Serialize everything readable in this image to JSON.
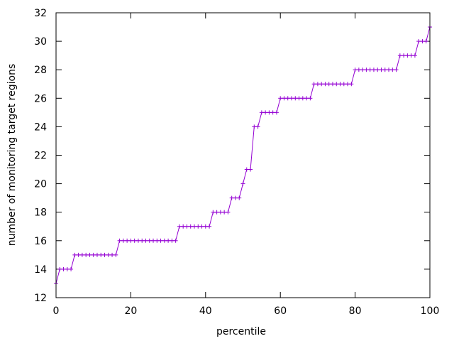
{
  "chart_data": {
    "type": "line",
    "title": "",
    "xlabel": "percentile",
    "ylabel": "number of monitoring target regions",
    "xlim": [
      0,
      100
    ],
    "ylim": [
      12,
      32
    ],
    "xticks": [
      0,
      20,
      40,
      60,
      80,
      100
    ],
    "yticks": [
      12,
      14,
      16,
      18,
      20,
      22,
      24,
      26,
      28,
      30,
      32
    ],
    "grid": false,
    "legend": "none",
    "marker": "plus",
    "series_color": "#9400d3",
    "series": [
      {
        "x": [
          0,
          1,
          2,
          3,
          4,
          5,
          6,
          7,
          8,
          9,
          10,
          11,
          12,
          13,
          14,
          15,
          16,
          17,
          18,
          19,
          20,
          21,
          22,
          23,
          24,
          25,
          26,
          27,
          28,
          29,
          30,
          31,
          32,
          33,
          34,
          35,
          36,
          37,
          38,
          39,
          40,
          41,
          42,
          43,
          44,
          45,
          46,
          47,
          48,
          49,
          50,
          51,
          52,
          53,
          54,
          55,
          56,
          57,
          58,
          59,
          60,
          61,
          62,
          63,
          64,
          65,
          66,
          67,
          68,
          69,
          70,
          71,
          72,
          73,
          74,
          75,
          76,
          77,
          78,
          79,
          80,
          81,
          82,
          83,
          84,
          85,
          86,
          87,
          88,
          89,
          90,
          91,
          92,
          93,
          94,
          95,
          96,
          97,
          98,
          99,
          100
        ],
        "y": [
          13,
          14,
          14,
          14,
          14,
          15,
          15,
          15,
          15,
          15,
          15,
          15,
          15,
          15,
          15,
          15,
          15,
          16,
          16,
          16,
          16,
          16,
          16,
          16,
          16,
          16,
          16,
          16,
          16,
          16,
          16,
          16,
          16,
          17,
          17,
          17,
          17,
          17,
          17,
          17,
          17,
          17,
          18,
          18,
          18,
          18,
          18,
          19,
          19,
          19,
          20,
          21,
          21,
          24,
          24,
          25,
          25,
          25,
          25,
          25,
          26,
          26,
          26,
          26,
          26,
          26,
          26,
          26,
          26,
          27,
          27,
          27,
          27,
          27,
          27,
          27,
          27,
          27,
          27,
          27,
          28,
          28,
          28,
          28,
          28,
          28,
          28,
          28,
          28,
          28,
          28,
          28,
          29,
          29,
          29,
          29,
          29,
          30,
          30,
          30,
          31
        ]
      }
    ]
  }
}
